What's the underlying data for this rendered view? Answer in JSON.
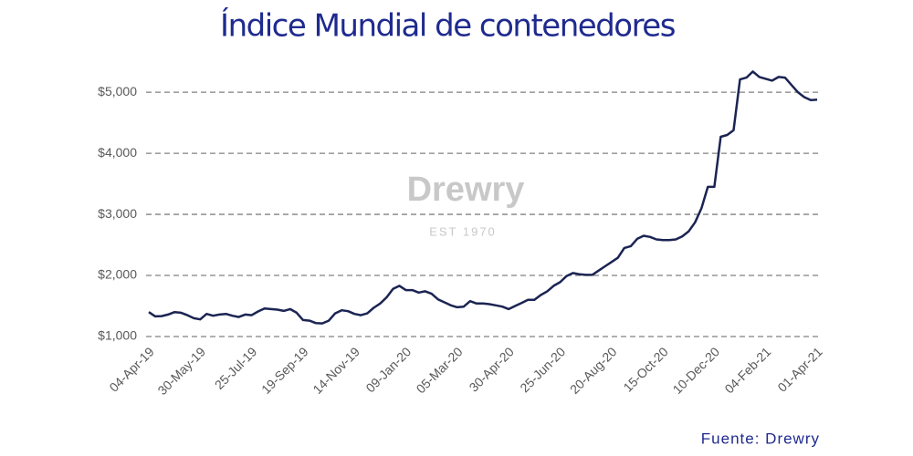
{
  "chart_data": {
    "type": "line",
    "title": "Índice Mundial de contenedores",
    "source": "Fuente:  Drewry",
    "watermark": {
      "name": "Drewry",
      "subtitle": "EST 1970"
    },
    "categories": [
      "04-Apr-19",
      null,
      null,
      null,
      null,
      null,
      null,
      null,
      "30-May-19",
      null,
      null,
      null,
      null,
      null,
      null,
      null,
      "25-Jul-19",
      null,
      null,
      null,
      null,
      null,
      null,
      null,
      "19-Sep-19",
      null,
      null,
      null,
      null,
      null,
      null,
      null,
      "14-Nov-19",
      null,
      null,
      null,
      null,
      null,
      null,
      null,
      "09-Jan-20",
      null,
      null,
      null,
      null,
      null,
      null,
      null,
      "05-Mar-20",
      null,
      null,
      null,
      null,
      null,
      null,
      null,
      "30-Apr-20",
      null,
      null,
      null,
      null,
      null,
      null,
      null,
      "25-Jun-20",
      null,
      null,
      null,
      null,
      null,
      null,
      null,
      "20-Aug-20",
      null,
      null,
      null,
      null,
      null,
      null,
      null,
      "15-Oct-20",
      null,
      null,
      null,
      null,
      null,
      null,
      null,
      "10-Dec-20",
      null,
      null,
      null,
      null,
      null,
      null,
      null,
      "04-Feb-21",
      null,
      null,
      null,
      null,
      null,
      null,
      null,
      "01-Apr-21"
    ],
    "values": [
      1400,
      1330,
      1335,
      1360,
      1400,
      1390,
      1350,
      1300,
      1280,
      1370,
      1340,
      1360,
      1370,
      1340,
      1320,
      1360,
      1350,
      1410,
      1460,
      1450,
      1440,
      1420,
      1450,
      1390,
      1270,
      1260,
      1220,
      1215,
      1260,
      1380,
      1430,
      1415,
      1370,
      1350,
      1380,
      1470,
      1540,
      1640,
      1780,
      1830,
      1760,
      1760,
      1720,
      1740,
      1700,
      1610,
      1560,
      1510,
      1480,
      1490,
      1580,
      1540,
      1540,
      1530,
      1510,
      1490,
      1450,
      1500,
      1550,
      1600,
      1600,
      1680,
      1740,
      1830,
      1890,
      1990,
      2040,
      2020,
      2010,
      2010,
      2080,
      2150,
      2220,
      2290,
      2450,
      2480,
      2600,
      2650,
      2630,
      2590,
      2580,
      2580,
      2590,
      2640,
      2720,
      2870,
      3100,
      3450,
      3450,
      4270,
      4300,
      4380,
      5210,
      5240,
      5340,
      5250,
      5220,
      5190,
      5250,
      5240,
      5120,
      5000,
      4920,
      4870,
      4880
    ],
    "color": "#1b2452",
    "ylim": [
      1000,
      5450
    ],
    "yticks": [
      {
        "value": 1000,
        "label": "$1,000"
      },
      {
        "value": 2000,
        "label": "$2,000"
      },
      {
        "value": 3000,
        "label": "$3,000"
      },
      {
        "value": 4000,
        "label": "$4,000"
      },
      {
        "value": 5000,
        "label": "$5,000"
      }
    ],
    "grid": true
  }
}
